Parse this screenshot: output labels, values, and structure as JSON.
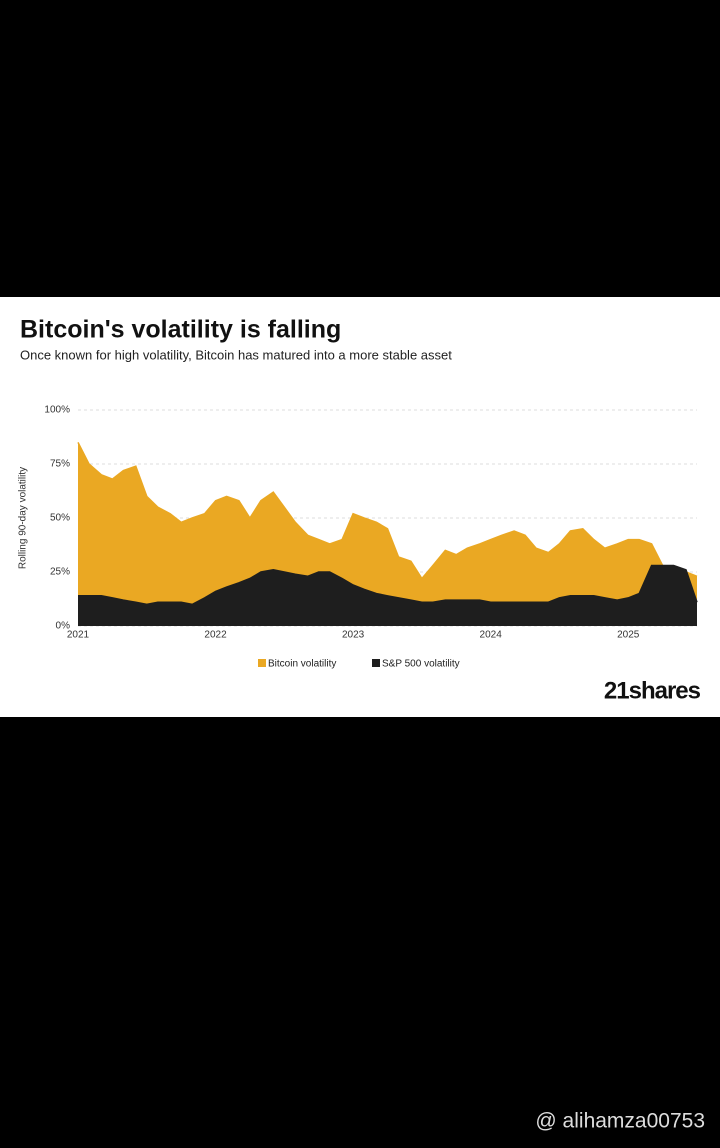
{
  "chart_data": {
    "type": "area",
    "title": "Bitcoin's volatility is falling",
    "subtitle": "Once known for high volatility, Bitcoin has matured into a more stable asset",
    "y_label": "Rolling 90-day volatility",
    "brand": "21shares",
    "watermark": "@ alihamza00753",
    "x": [
      2021,
      2021.08,
      2021.17,
      2021.25,
      2021.33,
      2021.42,
      2021.5,
      2021.58,
      2021.67,
      2021.75,
      2021.83,
      2021.92,
      2022,
      2022.08,
      2022.17,
      2022.25,
      2022.33,
      2022.42,
      2022.5,
      2022.58,
      2022.67,
      2022.75,
      2022.83,
      2022.92,
      2023,
      2023.08,
      2023.17,
      2023.25,
      2023.33,
      2023.42,
      2023.5,
      2023.58,
      2023.67,
      2023.75,
      2023.83,
      2023.92,
      2024,
      2024.08,
      2024.17,
      2024.25,
      2024.33,
      2024.42,
      2024.5,
      2024.58,
      2024.67,
      2024.75,
      2024.83,
      2024.92,
      2025,
      2025.08,
      2025.17,
      2025.25,
      2025.33,
      2025.42,
      2025.5
    ],
    "series": [
      {
        "name": "Bitcoin volatility",
        "color": "#eaa823",
        "values": [
          85,
          75,
          70,
          68,
          72,
          74,
          60,
          55,
          52,
          48,
          50,
          52,
          58,
          60,
          58,
          50,
          58,
          62,
          55,
          48,
          42,
          40,
          38,
          40,
          52,
          50,
          48,
          45,
          32,
          30,
          22,
          28,
          35,
          33,
          36,
          38,
          40,
          42,
          44,
          42,
          36,
          34,
          38,
          44,
          45,
          40,
          36,
          38,
          40,
          40,
          38,
          28,
          27,
          25,
          23
        ]
      },
      {
        "name": "S&P 500 volatility",
        "color": "#1e1e1e",
        "values": [
          14,
          14,
          14,
          13,
          12,
          11,
          10,
          11,
          11,
          11,
          10,
          13,
          16,
          18,
          20,
          22,
          25,
          26,
          25,
          24,
          23,
          25,
          25,
          22,
          19,
          17,
          15,
          14,
          13,
          12,
          11,
          11,
          12,
          12,
          12,
          12,
          11,
          11,
          11,
          11,
          11,
          11,
          13,
          14,
          14,
          14,
          13,
          12,
          13,
          15,
          28,
          28,
          28,
          26,
          11
        ]
      }
    ],
    "xlim": [
      2021,
      2025.5
    ],
    "xticks": [
      2021,
      2022,
      2023,
      2024,
      2025
    ],
    "ylim": [
      0,
      100
    ],
    "yticks": [
      {
        "value": 0,
        "label": "0%"
      },
      {
        "value": 25,
        "label": "25%"
      },
      {
        "value": 50,
        "label": "50%"
      },
      {
        "value": 75,
        "label": "75%"
      },
      {
        "value": 100,
        "label": "100%"
      }
    ],
    "grid": true
  }
}
